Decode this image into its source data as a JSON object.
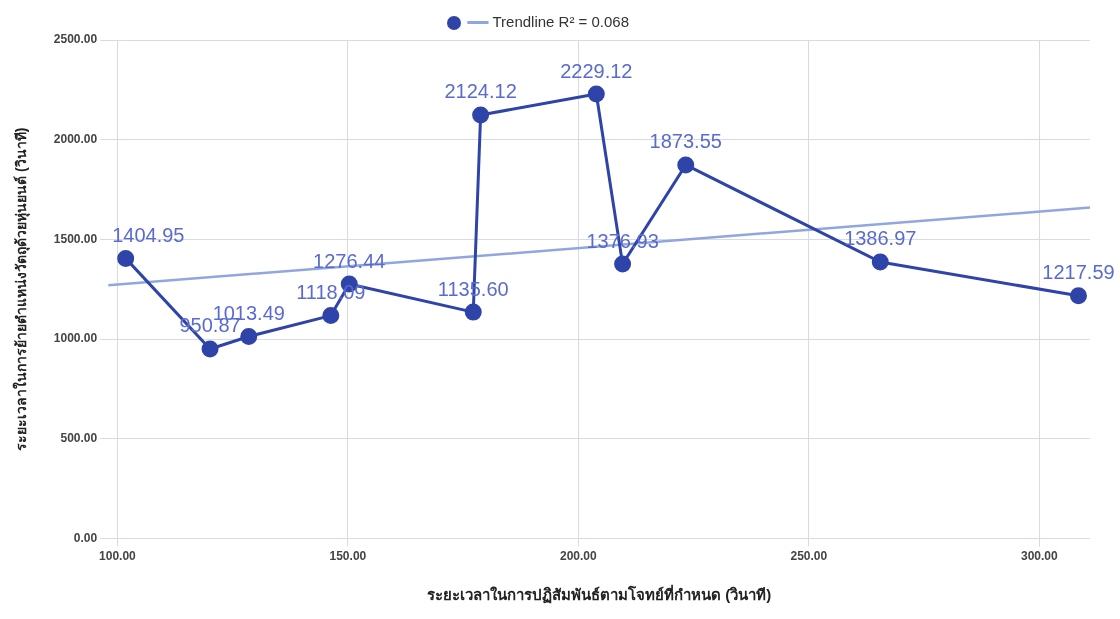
{
  "chart_data": {
    "type": "line",
    "xlabel": "ระยะเวลาในการปฏิสัมพันธ์ตามโจทย์ที่กำหนด (วินาที)",
    "ylabel": "ระยะเวลาในการย้ายตำแหน่งวัตถุด้วยหุ่นยนต์ (วินาที)",
    "series": [
      {
        "color": "#2e44a8",
        "x": [
          101.8,
          120.1,
          128.5,
          146.3,
          150.3,
          177.2,
          178.8,
          203.9,
          209.6,
          223.3,
          265.5,
          308.5
        ],
        "values": [
          1404.95,
          950.87,
          1013.49,
          1118.09,
          1276.44,
          1135.6,
          2124.12,
          2229.12,
          1376.93,
          1873.55,
          1386.97,
          1217.59
        ],
        "value_labels": [
          "1404.95",
          "950.87",
          "1013.49",
          "1118.09",
          "1276.44",
          "1135.60",
          "2124.12",
          "2229.12",
          "1376.93",
          "1873.55",
          "1386.97",
          "1217.59"
        ],
        "marker": "circle"
      },
      {
        "name": "Trendline R² = 0.068",
        "color": "#8fa6e0",
        "x": [
          98,
          311
        ],
        "values": [
          1270,
          1660
        ],
        "marker": "none"
      }
    ],
    "xlim": [
      98,
      311
    ],
    "xticks": [
      {
        "value": 100,
        "label": "100.00"
      },
      {
        "value": 150,
        "label": "150.00"
      },
      {
        "value": 200,
        "label": "200.00"
      },
      {
        "value": 250,
        "label": "250.00"
      },
      {
        "value": 300,
        "label": "300.00"
      }
    ],
    "ylim": [
      0,
      2500
    ],
    "yticks": [
      {
        "value": 0,
        "label": "0.00"
      },
      {
        "value": 500,
        "label": "500.00"
      },
      {
        "value": 1000,
        "label": "1000.00"
      },
      {
        "value": 1500,
        "label": "1500.00"
      },
      {
        "value": 2000,
        "label": "2000.00"
      },
      {
        "value": 2500,
        "label": "2500.00"
      }
    ],
    "grid": true,
    "legend": "top",
    "line_style": "solid"
  }
}
